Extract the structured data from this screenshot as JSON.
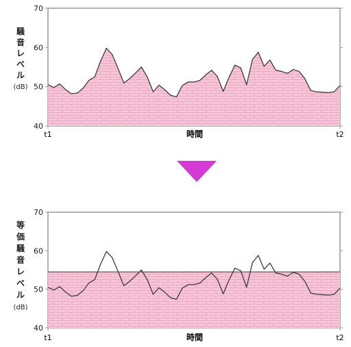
{
  "colors": {
    "fill": "#f4c8d8",
    "pattern_line": "#e8a9c0",
    "curve": "#3a3a3a",
    "frame": "#999999",
    "arrow": "#d63ad6"
  },
  "chart_data": [
    {
      "type": "area",
      "ylabel": "騒音レベル(dB)",
      "ylabel_lines": [
        "騒",
        "音",
        "レ",
        "ベ",
        "ル",
        "(dB)"
      ],
      "xlabel": "時間",
      "x_tick_start": "t1",
      "x_tick_end": "t2",
      "ylim": [
        40,
        70
      ],
      "yticks": [
        "40",
        "50",
        "60",
        "70"
      ],
      "grid": false,
      "x": [
        0,
        0.02,
        0.04,
        0.06,
        0.08,
        0.1,
        0.12,
        0.14,
        0.16,
        0.18,
        0.2,
        0.22,
        0.24,
        0.26,
        0.28,
        0.3,
        0.32,
        0.34,
        0.36,
        0.38,
        0.4,
        0.42,
        0.44,
        0.46,
        0.48,
        0.5,
        0.52,
        0.54,
        0.56,
        0.58,
        0.6,
        0.62,
        0.64,
        0.66,
        0.68,
        0.7,
        0.72,
        0.74,
        0.76,
        0.78,
        0.8,
        0.82,
        0.84,
        0.86,
        0.88,
        0.9,
        0.92,
        0.94,
        0.96,
        0.98,
        1.0
      ],
      "values": [
        50.5,
        49.8,
        50.7,
        49.3,
        48.2,
        48.4,
        49.6,
        51.6,
        52.5,
        56.5,
        59.8,
        58.2,
        54.6,
        50.9,
        52.1,
        53.5,
        55.0,
        52.5,
        48.7,
        50.4,
        49.2,
        47.8,
        47.4,
        50.3,
        51.2,
        51.2,
        51.6,
        53.0,
        54.2,
        52.6,
        48.8,
        52.4,
        55.5,
        54.8,
        50.5,
        56.9,
        58.8,
        55.2,
        56.8,
        54.2,
        53.9,
        53.4,
        54.4,
        53.9,
        52.0,
        49.0,
        48.7,
        48.6,
        48.5,
        48.7,
        50.3
      ]
    },
    {
      "type": "area",
      "ylabel": "等価騒音レベル(dB)",
      "ylabel_lines": [
        "等",
        "価",
        "騒",
        "音",
        "レ",
        "ベ",
        "ル",
        "(dB)"
      ],
      "xlabel": "時間",
      "x_tick_start": "t1",
      "x_tick_end": "t2",
      "ylim": [
        40,
        70
      ],
      "yticks": [
        "40",
        "50",
        "60",
        "70"
      ],
      "grid": false,
      "equivalent_level": 54.5,
      "x": [
        0,
        0.02,
        0.04,
        0.06,
        0.08,
        0.1,
        0.12,
        0.14,
        0.16,
        0.18,
        0.2,
        0.22,
        0.24,
        0.26,
        0.28,
        0.3,
        0.32,
        0.34,
        0.36,
        0.38,
        0.4,
        0.42,
        0.44,
        0.46,
        0.48,
        0.5,
        0.52,
        0.54,
        0.56,
        0.58,
        0.6,
        0.62,
        0.64,
        0.66,
        0.68,
        0.7,
        0.72,
        0.74,
        0.76,
        0.78,
        0.8,
        0.82,
        0.84,
        0.86,
        0.88,
        0.9,
        0.92,
        0.94,
        0.96,
        0.98,
        1.0
      ],
      "values": [
        50.5,
        49.8,
        50.7,
        49.3,
        48.2,
        48.4,
        49.6,
        51.6,
        52.5,
        56.5,
        59.8,
        58.2,
        54.6,
        50.9,
        52.1,
        53.5,
        55.0,
        52.5,
        48.7,
        50.4,
        49.2,
        47.8,
        47.4,
        50.3,
        51.2,
        51.2,
        51.6,
        53.0,
        54.2,
        52.6,
        48.8,
        52.4,
        55.5,
        54.8,
        50.5,
        56.9,
        58.8,
        55.2,
        56.8,
        54.2,
        53.9,
        53.4,
        54.4,
        53.9,
        52.0,
        49.0,
        48.7,
        48.6,
        48.5,
        48.7,
        50.3
      ]
    }
  ]
}
